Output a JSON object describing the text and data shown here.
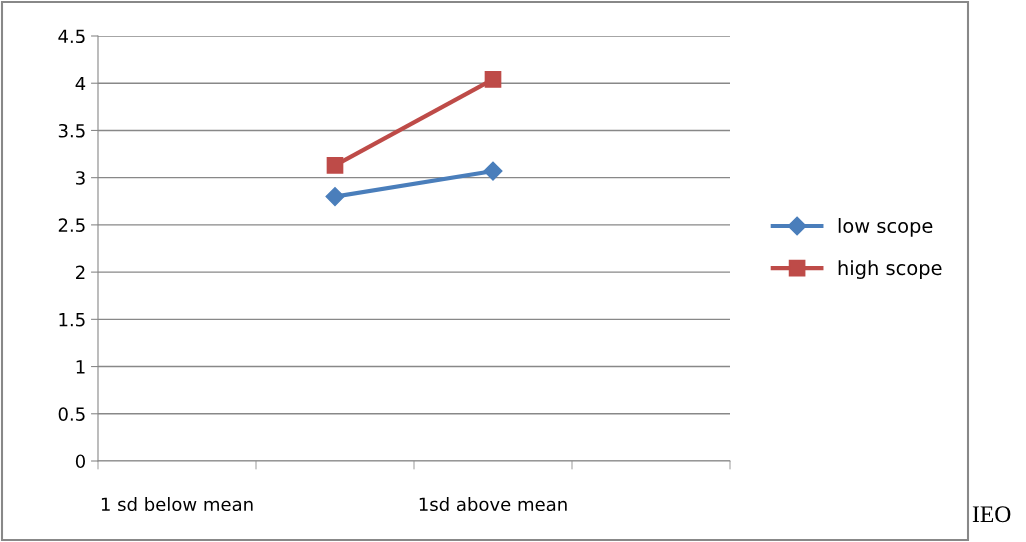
{
  "chart_data": {
    "type": "line",
    "categories": [
      "1 sd below mean",
      null,
      "1sd above mean",
      null
    ],
    "series": [
      {
        "name": "low scope",
        "color": "#4a7ebb",
        "values": [
          null,
          2.8,
          3.07,
          null
        ],
        "marker": "diamond"
      },
      {
        "name": "high scope",
        "color": "#be4b48",
        "values": [
          null,
          3.13,
          4.04,
          null
        ],
        "marker": "square"
      }
    ],
    "ylim": [
      0,
      4.5
    ],
    "yticks": [
      0,
      0.5,
      1,
      1.5,
      2,
      2.5,
      3,
      3.5,
      4,
      4.5
    ],
    "grid": "y",
    "legend": "right",
    "line_style": "solid",
    "annotations": [
      "IEO"
    ]
  }
}
